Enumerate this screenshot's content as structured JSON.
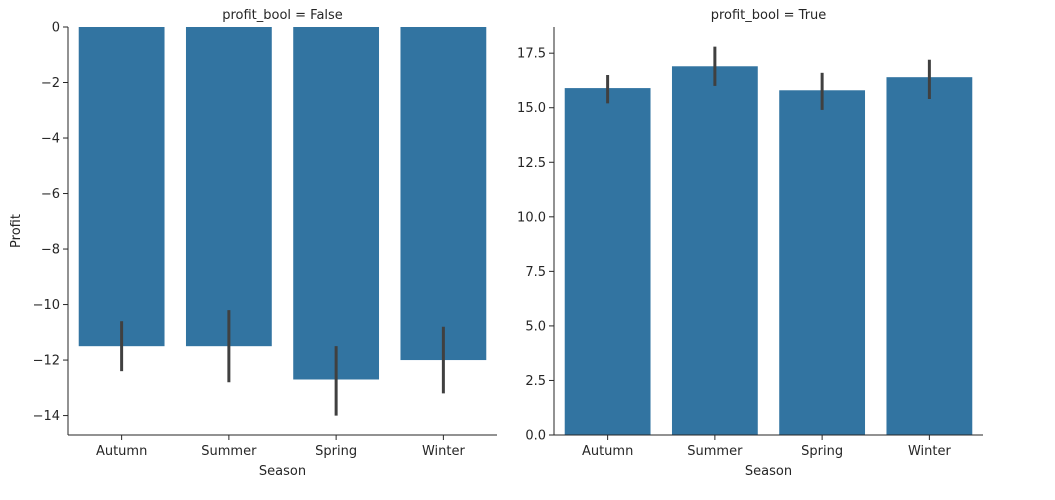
{
  "chart_data": [
    {
      "type": "bar",
      "title": "profit_bool = False",
      "xlabel": "Season",
      "ylabel": "Profit",
      "categories": [
        "Autumn",
        "Summer",
        "Spring",
        "Winter"
      ],
      "values": [
        -11.5,
        -11.5,
        -12.7,
        -12.0
      ],
      "error_bars": [
        [
          -12.4,
          -10.6
        ],
        [
          -12.8,
          -10.2
        ],
        [
          -14.0,
          -11.5
        ],
        [
          -13.2,
          -10.8
        ]
      ],
      "ylim": [
        -14.7,
        0
      ],
      "yticks": [
        0,
        -2,
        -4,
        -6,
        -8,
        -10,
        -12,
        -14
      ],
      "ytick_labels": [
        "0",
        "−2",
        "−4",
        "−6",
        "−8",
        "−10",
        "−12",
        "−14"
      ],
      "grid": false,
      "bar_color": "#3274a1",
      "errorbar_color": "#404040"
    },
    {
      "type": "bar",
      "title": "profit_bool = True",
      "xlabel": "Season",
      "ylabel": "",
      "categories": [
        "Autumn",
        "Summer",
        "Spring",
        "Winter"
      ],
      "values": [
        15.9,
        16.9,
        15.8,
        16.4
      ],
      "error_bars": [
        [
          15.2,
          16.5
        ],
        [
          16.0,
          17.8
        ],
        [
          14.9,
          16.6
        ],
        [
          15.4,
          17.2
        ]
      ],
      "ylim": [
        0,
        18.7
      ],
      "yticks": [
        0,
        2.5,
        5,
        7.5,
        10,
        12.5,
        15,
        17.5
      ],
      "ytick_labels": [
        "0.0",
        "2.5",
        "5.0",
        "7.5",
        "10.0",
        "12.5",
        "15.0",
        "17.5"
      ],
      "grid": false,
      "bar_color": "#3274a1",
      "errorbar_color": "#404040"
    }
  ]
}
